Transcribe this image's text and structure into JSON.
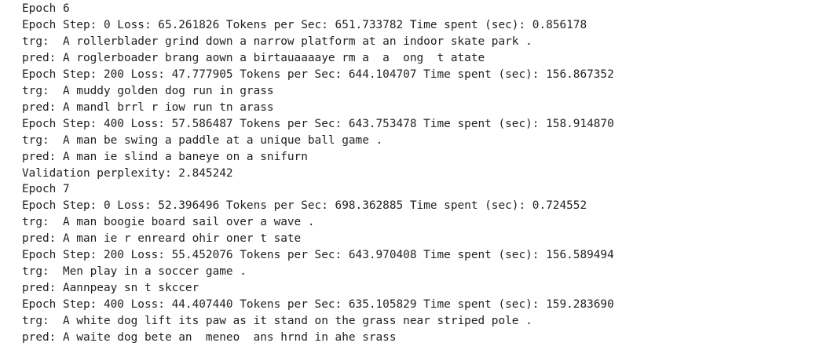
{
  "output": {
    "lines": [
      "Epoch 6",
      "Epoch Step: 0 Loss: 65.261826 Tokens per Sec: 651.733782 Time spent (sec): 0.856178",
      "trg:  A rollerblader grind down a narrow platform at an indoor skate park .",
      "pred: A roglerboader brang aown a birtauaaaaye rm a  a  ong  t atate",
      "Epoch Step: 200 Loss: 47.777905 Tokens per Sec: 644.104707 Time spent (sec): 156.867352",
      "trg:  A muddy golden dog run in grass",
      "pred: A mandl brrl r iow run tn arass",
      "Epoch Step: 400 Loss: 57.586487 Tokens per Sec: 643.753478 Time spent (sec): 158.914870",
      "trg:  A man be swing a paddle at a unique ball game .",
      "pred: A man ie slind a baneye on a snifurn",
      "Validation perplexity: 2.845242",
      "Epoch 7",
      "Epoch Step: 0 Loss: 52.396496 Tokens per Sec: 698.362885 Time spent (sec): 0.724552",
      "trg:  A man boogie board sail over a wave .",
      "pred: A man ie r enreard ohir oner t sate",
      "Epoch Step: 200 Loss: 55.452076 Tokens per Sec: 643.970408 Time spent (sec): 156.589494",
      "trg:  Men play in a soccer game .",
      "pred: Aannpeay sn t skccer",
      "Epoch Step: 400 Loss: 44.407440 Tokens per Sec: 635.105829 Time spent (sec): 159.283690",
      "trg:  A white dog lift its paw as it stand on the grass near striped pole .",
      "pred: A waite dog bete an  meneo  ans hrnd in ahe srass"
    ]
  }
}
